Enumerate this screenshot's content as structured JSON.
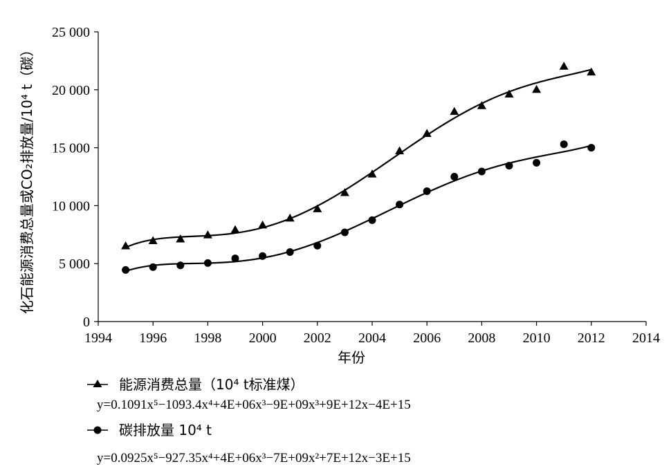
{
  "chart_data": {
    "type": "scatter",
    "title": "",
    "xlabel": "年份",
    "ylabel": "化石能源消费总量或CO₂排放量/10⁴ t（碳）",
    "xlim": [
      1994,
      2014
    ],
    "ylim": [
      0,
      25000
    ],
    "x_ticks": [
      "1994",
      "1996",
      "1998",
      "2000",
      "2002",
      "2004",
      "2006",
      "2008",
      "2010",
      "2012",
      "2014"
    ],
    "y_ticks": [
      "0",
      "5 000",
      "10 000",
      "15 000",
      "20 000",
      "25 000"
    ],
    "series": [
      {
        "name": "能源消费总量（10⁴ t标准煤）",
        "marker": "triangle",
        "color": "#000000",
        "x": [
          1995,
          1996,
          1997,
          1998,
          1999,
          2000,
          2001,
          2002,
          2003,
          2004,
          2005,
          2006,
          2007,
          2008,
          2009,
          2010,
          2011,
          2012
        ],
        "values": [
          6500,
          6950,
          7100,
          7450,
          7900,
          8300,
          8900,
          9700,
          11100,
          12700,
          14700,
          16200,
          18100,
          18600,
          19600,
          20000,
          22000,
          21500
        ],
        "equation": "y=0.1091x⁵−1093.4x⁴+4E+06x³−9E+09x³+9E+12x−4E+15"
      },
      {
        "name": "碳排放量 10⁴ t",
        "marker": "circle",
        "color": "#000000",
        "x": [
          1995,
          1996,
          1997,
          1998,
          1999,
          2000,
          2001,
          2002,
          2003,
          2004,
          2005,
          2006,
          2007,
          2008,
          2009,
          2010,
          2011,
          2012
        ],
        "values": [
          4450,
          4700,
          4850,
          5050,
          5450,
          5650,
          6000,
          6550,
          7700,
          8750,
          10100,
          11250,
          12500,
          12950,
          13450,
          13700,
          15300,
          15000
        ],
        "equation": "y=0.0925x⁵−927.35x⁴+4E+06x³−7E+09x²+7E+12x−3E+15"
      }
    ],
    "legend": {
      "position": "bottom-left",
      "entries": [
        {
          "label": "能源消费总量（10⁴ t标准煤）",
          "equation": "y=0.1091x⁵−1093.4x⁴+4E+06x³−9E+09x³+9E+12x−4E+15"
        },
        {
          "label": "碳排放量 10⁴ t",
          "equation": "y=0.0925x⁵−927.35x⁴+4E+06x³−7E+09x²+7E+12x−3E+15"
        }
      ]
    },
    "grid": false
  }
}
